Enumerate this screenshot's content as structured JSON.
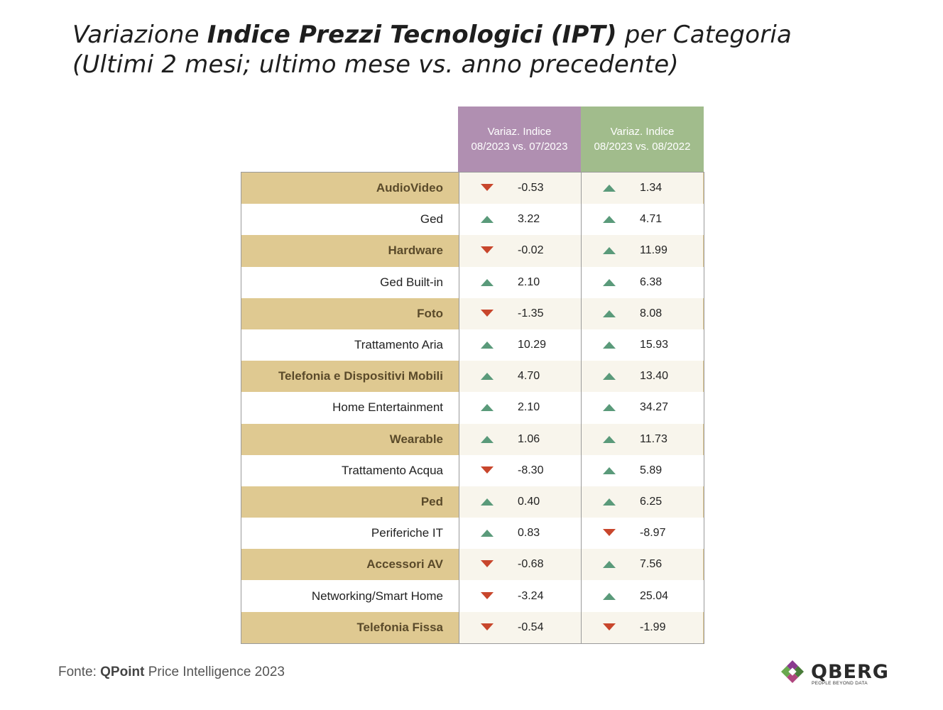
{
  "title": {
    "line1_prefix": "Variazione ",
    "line1_bold": "Indice Prezzi Tecnologici (IPT)",
    "line1_suffix": " per Categoria",
    "line2": "(Ultimi 2 mesi; ultimo mese vs. anno precedente)"
  },
  "columns": [
    {
      "line1": "Variaz. Indice",
      "line2": "08/2023 vs. 07/2023",
      "color": "#b08fb1"
    },
    {
      "line1": "Variaz. Indice",
      "line2": "08/2023 vs. 08/2022",
      "color": "#a1bc8c"
    }
  ],
  "rows": [
    {
      "category": "AudioVideo",
      "v1": "-0.53",
      "d1": "down",
      "v2": "1.34",
      "d2": "up"
    },
    {
      "category": "Ged",
      "v1": "3.22",
      "d1": "up",
      "v2": "4.71",
      "d2": "up"
    },
    {
      "category": "Hardware",
      "v1": "-0.02",
      "d1": "down",
      "v2": "11.99",
      "d2": "up"
    },
    {
      "category": "Ged Built-in",
      "v1": "2.10",
      "d1": "up",
      "v2": "6.38",
      "d2": "up"
    },
    {
      "category": "Foto",
      "v1": "-1.35",
      "d1": "down",
      "v2": "8.08",
      "d2": "up"
    },
    {
      "category": "Trattamento Aria",
      "v1": "10.29",
      "d1": "up",
      "v2": "15.93",
      "d2": "up"
    },
    {
      "category": "Telefonia e Dispositivi Mobili",
      "v1": "4.70",
      "d1": "up",
      "v2": "13.40",
      "d2": "up"
    },
    {
      "category": "Home Entertainment",
      "v1": "2.10",
      "d1": "up",
      "v2": "34.27",
      "d2": "up"
    },
    {
      "category": "Wearable",
      "v1": "1.06",
      "d1": "up",
      "v2": "11.73",
      "d2": "up"
    },
    {
      "category": "Trattamento Acqua",
      "v1": "-8.30",
      "d1": "down",
      "v2": "5.89",
      "d2": "up"
    },
    {
      "category": "Ped",
      "v1": "0.40",
      "d1": "up",
      "v2": "6.25",
      "d2": "up"
    },
    {
      "category": "Periferiche IT",
      "v1": "0.83",
      "d1": "up",
      "v2": "-8.97",
      "d2": "down"
    },
    {
      "category": "Accessori AV",
      "v1": "-0.68",
      "d1": "down",
      "v2": "7.56",
      "d2": "up"
    },
    {
      "category": "Networking/Smart Home",
      "v1": "-3.24",
      "d1": "down",
      "v2": "25.04",
      "d2": "up"
    },
    {
      "category": "Telefonia Fissa",
      "v1": "-0.54",
      "d1": "down",
      "v2": "-1.99",
      "d2": "down"
    }
  ],
  "source": {
    "prefix": "Fonte: ",
    "bold": "QPoint",
    "suffix": " Price Intelligence 2023"
  },
  "logo": {
    "name": "QBERG",
    "tagline": "PEOPLE BEYOND DATA"
  }
}
